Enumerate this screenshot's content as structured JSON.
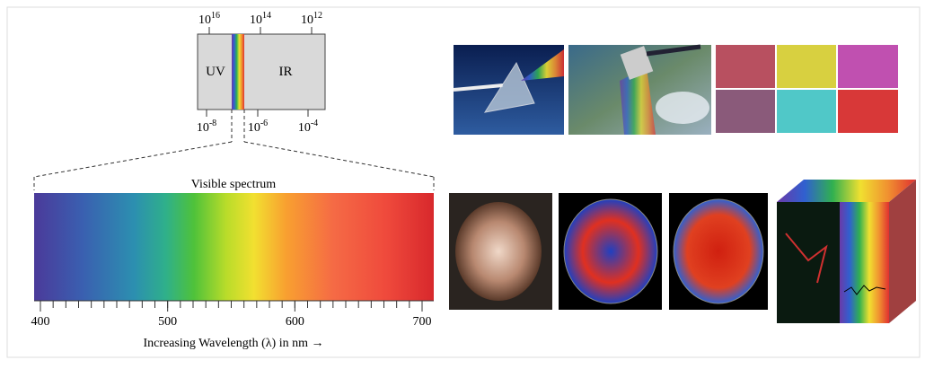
{
  "top_spectrum": {
    "frequency_labels": [
      {
        "base": "10",
        "exp": "16"
      },
      {
        "base": "10",
        "exp": "14"
      },
      {
        "base": "10",
        "exp": "12"
      }
    ],
    "wavelength_labels": [
      {
        "base": "10",
        "exp": "-8"
      },
      {
        "base": "10",
        "exp": "-6"
      },
      {
        "base": "10",
        "exp": "-4"
      }
    ],
    "regions": [
      "UV",
      "IR"
    ]
  },
  "visible": {
    "title": "Visible spectrum",
    "ticks": [
      400,
      500,
      600,
      700
    ],
    "axis_label": "Increasing Wavelength (λ) in nm →"
  }
}
